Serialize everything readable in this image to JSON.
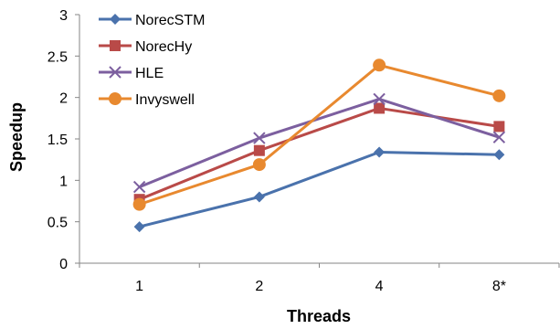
{
  "chart_data": {
    "type": "line",
    "title": "",
    "xlabel": "Threads",
    "ylabel": "Speedup",
    "categories": [
      "1",
      "2",
      "4",
      "8*"
    ],
    "ylim": [
      0,
      3
    ],
    "yticks": [
      "0",
      "0.5",
      "1",
      "1.5",
      "2",
      "2.5",
      "3"
    ],
    "grid": false,
    "legend_position": "top-left",
    "series": [
      {
        "name": "NorecSTM",
        "values": [
          0.44,
          0.8,
          1.34,
          1.31
        ],
        "color": "#4a72ac",
        "marker": "diamond"
      },
      {
        "name": "NorecHy",
        "values": [
          0.77,
          1.36,
          1.87,
          1.65
        ],
        "color": "#b94a48",
        "marker": "square"
      },
      {
        "name": "HLE",
        "values": [
          0.92,
          1.51,
          1.98,
          1.52
        ],
        "color": "#7c5f9f",
        "marker": "x"
      },
      {
        "name": "Invyswell",
        "values": [
          0.71,
          1.19,
          2.39,
          2.02
        ],
        "color": "#e8892f",
        "marker": "circle"
      }
    ]
  }
}
